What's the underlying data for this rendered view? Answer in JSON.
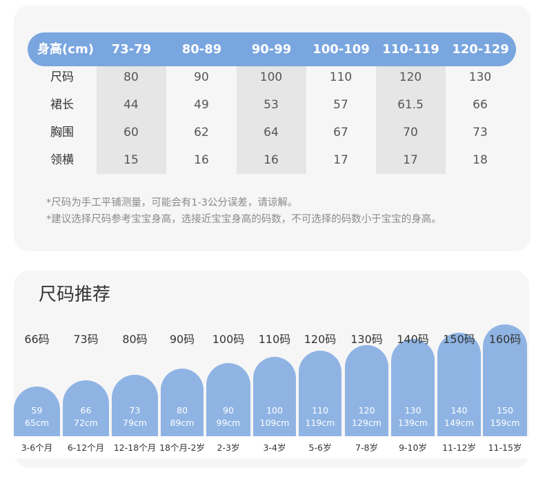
{
  "table": {
    "header_label": "身高(cm)",
    "heights": [
      "73-79",
      "80-89",
      "90-99",
      "100-109",
      "110-119",
      "120-129"
    ],
    "rows": [
      {
        "label": "尺码",
        "values": [
          "80",
          "90",
          "100",
          "110",
          "120",
          "130"
        ]
      },
      {
        "label": "裙长",
        "values": [
          "44",
          "49",
          "53",
          "57",
          "61.5",
          "66"
        ]
      },
      {
        "label": "胸围",
        "values": [
          "60",
          "62",
          "64",
          "67",
          "70",
          "73"
        ]
      },
      {
        "label": "领横",
        "values": [
          "15",
          "16",
          "16",
          "17",
          "17",
          "18"
        ]
      }
    ],
    "notes": [
      "*尺码为手工平铺测量，可能会有1-3公分误差，请谅解。",
      "*建议选择尺码参考宝宝身高，选接近宝宝身高的码数，不可选择的码数小于宝宝的身高。"
    ]
  },
  "colors": {
    "header": "#7aa6e0",
    "bars": "#8fb4e4",
    "card": "#f6f6f6"
  },
  "recommend": {
    "title": "尺码推荐",
    "sizes": [
      {
        "size": "66码",
        "height": "59",
        "range": "65cm",
        "age": "3-6个月",
        "level": 0.0
      },
      {
        "size": "73码",
        "height": "66",
        "range": "72cm",
        "age": "6-12个月",
        "level": 0.1
      },
      {
        "size": "80码",
        "height": "73",
        "range": "79cm",
        "age": "12-18个月",
        "level": 0.19
      },
      {
        "size": "90码",
        "height": "80",
        "range": "89cm",
        "age": "18个月-2岁",
        "level": 0.29
      },
      {
        "size": "100码",
        "height": "90",
        "range": "99cm",
        "age": "2-3岁",
        "level": 0.38
      },
      {
        "size": "110码",
        "height": "100",
        "range": "109cm",
        "age": "3-4岁",
        "level": 0.48
      },
      {
        "size": "120码",
        "height": "110",
        "range": "119cm",
        "age": "5-6岁",
        "level": 0.58
      },
      {
        "size": "130码",
        "height": "120",
        "range": "129cm",
        "age": "7-8岁",
        "level": 0.67
      },
      {
        "size": "140码",
        "height": "130",
        "range": "139cm",
        "age": "9-10岁",
        "level": 0.77
      },
      {
        "size": "150码",
        "height": "140",
        "range": "149cm",
        "age": "11-12岁",
        "level": 0.87
      },
      {
        "size": "160码",
        "height": "150",
        "range": "159cm",
        "age": "11-15岁",
        "level": 1.0
      }
    ]
  }
}
